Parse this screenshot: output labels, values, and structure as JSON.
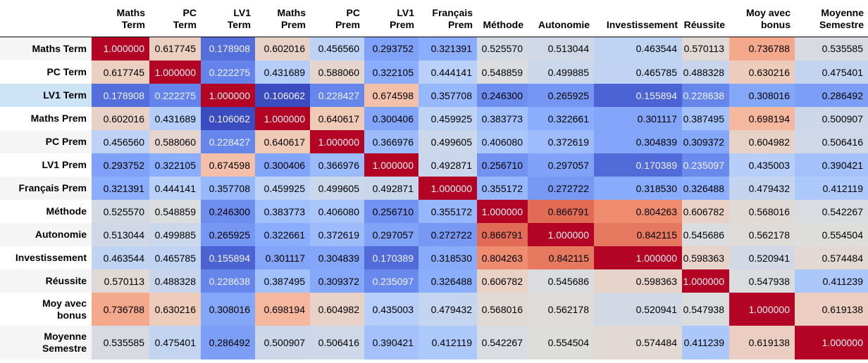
{
  "chart_data": {
    "type": "heatmap",
    "colormap": "coolwarm",
    "vmin": 0.106062,
    "vmax": 1.0,
    "highlighted_row": 2,
    "columns": [
      [
        "Maths",
        "Term"
      ],
      [
        "PC",
        "Term"
      ],
      [
        "LV1",
        "Term"
      ],
      [
        "Maths",
        "Prem"
      ],
      [
        "PC",
        "Prem"
      ],
      [
        "LV1",
        "Prem"
      ],
      [
        "Français",
        "Prem"
      ],
      [
        "Méthode"
      ],
      [
        "Autonomie"
      ],
      [
        "Investissement"
      ],
      [
        "Réussite"
      ],
      [
        "Moy avec",
        "bonus"
      ],
      [
        "Moyenne",
        "Semestre"
      ]
    ],
    "rows": [
      [
        "Maths Term"
      ],
      [
        "PC Term"
      ],
      [
        "LV1 Term"
      ],
      [
        "Maths Prem"
      ],
      [
        "PC Prem"
      ],
      [
        "LV1 Prem"
      ],
      [
        "Français Prem"
      ],
      [
        "Méthode"
      ],
      [
        "Autonomie"
      ],
      [
        "Investissement"
      ],
      [
        "Réussite"
      ],
      [
        "Moy avec",
        "bonus"
      ],
      [
        "Moyenne",
        "Semestre"
      ]
    ],
    "values": [
      [
        1.0,
        0.617745,
        0.178908,
        0.602016,
        0.45656,
        0.293752,
        0.321391,
        0.52557,
        0.513044,
        0.463544,
        0.570113,
        0.736788,
        0.535585
      ],
      [
        0.617745,
        1.0,
        0.222275,
        0.431689,
        0.58806,
        0.322105,
        0.444141,
        0.548859,
        0.499885,
        0.465785,
        0.488328,
        0.630216,
        0.475401
      ],
      [
        0.178908,
        0.222275,
        1.0,
        0.106062,
        0.228427,
        0.674598,
        0.357708,
        0.2463,
        0.265925,
        0.155894,
        0.228638,
        0.308016,
        0.286492
      ],
      [
        0.602016,
        0.431689,
        0.106062,
        1.0,
        0.640617,
        0.300406,
        0.459925,
        0.383773,
        0.322661,
        0.301117,
        0.387495,
        0.698194,
        0.500907
      ],
      [
        0.45656,
        0.58806,
        0.228427,
        0.640617,
        1.0,
        0.366976,
        0.499605,
        0.40608,
        0.372619,
        0.304839,
        0.309372,
        0.604982,
        0.506416
      ],
      [
        0.293752,
        0.322105,
        0.674598,
        0.300406,
        0.366976,
        1.0,
        0.492871,
        0.25671,
        0.297057,
        0.170389,
        0.235097,
        0.435003,
        0.390421
      ],
      [
        0.321391,
        0.444141,
        0.357708,
        0.459925,
        0.499605,
        0.492871,
        1.0,
        0.355172,
        0.272722,
        0.31853,
        0.326488,
        0.479432,
        0.412119
      ],
      [
        0.52557,
        0.548859,
        0.2463,
        0.383773,
        0.40608,
        0.25671,
        0.355172,
        1.0,
        0.866791,
        0.804263,
        0.606782,
        0.568016,
        0.542267
      ],
      [
        0.513044,
        0.499885,
        0.265925,
        0.322661,
        0.372619,
        0.297057,
        0.272722,
        0.866791,
        1.0,
        0.842115,
        0.545686,
        0.562178,
        0.554504
      ],
      [
        0.463544,
        0.465785,
        0.155894,
        0.301117,
        0.304839,
        0.170389,
        0.31853,
        0.804263,
        0.842115,
        1.0,
        0.598363,
        0.520941,
        0.574484
      ],
      [
        0.570113,
        0.488328,
        0.228638,
        0.387495,
        0.309372,
        0.235097,
        0.326488,
        0.606782,
        0.545686,
        0.598363,
        1.0,
        0.547938,
        0.411239
      ],
      [
        0.736788,
        0.630216,
        0.308016,
        0.698194,
        0.604982,
        0.435003,
        0.479432,
        0.568016,
        0.562178,
        0.520941,
        0.547938,
        1.0,
        0.619138
      ],
      [
        0.535585,
        0.475401,
        0.286492,
        0.500907,
        0.506416,
        0.390421,
        0.412119,
        0.542267,
        0.554504,
        0.574484,
        0.411239,
        0.619138,
        1.0
      ]
    ]
  }
}
